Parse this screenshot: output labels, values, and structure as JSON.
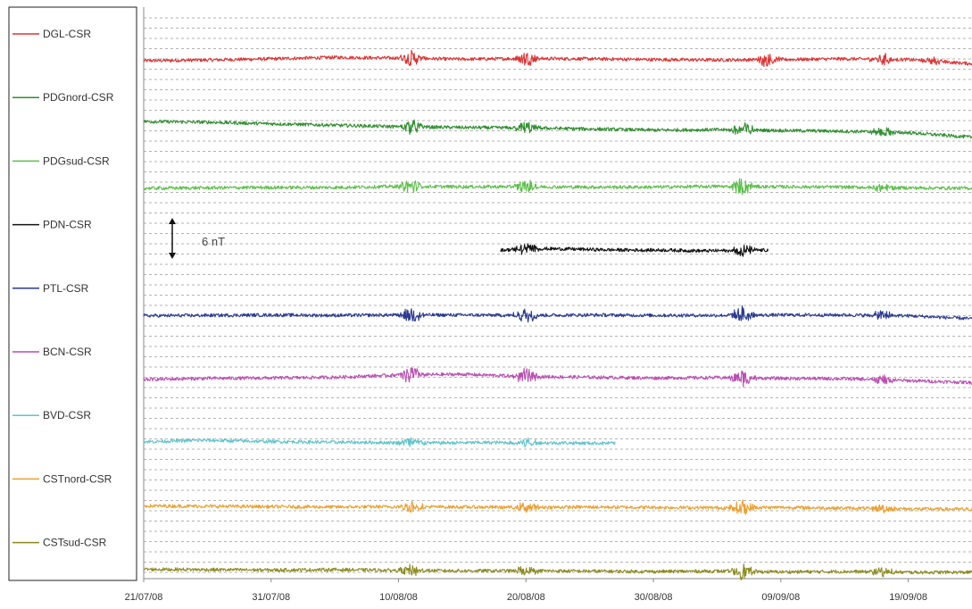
{
  "chart_data": {
    "type": "line",
    "title": "",
    "xlabel": "",
    "ylabel": "",
    "x_ticks": [
      "21/07/08",
      "31/07/08",
      "10/08/08",
      "20/08/08",
      "30/08/08",
      "09/09/08",
      "19/09/08"
    ],
    "x_range_days": [
      0,
      65
    ],
    "grid": {
      "horizontal": "dashed",
      "vertical": "none"
    },
    "legend_placement": "left",
    "scale_bar": {
      "label": "6 nT",
      "value_nT": 6
    },
    "series": [
      {
        "name": "DGL-CSR",
        "color": "#dd3333",
        "start_day": 0,
        "end_day": 65,
        "baseline": [
          0.0,
          0.2,
          0.5,
          0.9,
          0.7,
          0.4,
          0.6,
          0.5,
          0.3,
          0.2,
          0.3,
          0.5,
          0.3,
          -0.8
        ],
        "events": [
          [
            21,
            2.2
          ],
          [
            30,
            2.0
          ],
          [
            49,
            2.0
          ],
          [
            58,
            1.6
          ],
          [
            62,
            -0.8
          ]
        ]
      },
      {
        "name": "PDGnord-CSR",
        "color": "#2f8f2f",
        "start_day": 0,
        "end_day": 65,
        "baseline": [
          0.8,
          0.6,
          0.2,
          -0.2,
          -0.6,
          -0.8,
          -0.9,
          -1.2,
          -1.5,
          -1.4,
          -1.6,
          -1.8,
          -2.2,
          -3.4
        ],
        "events": [
          [
            21,
            2.0
          ],
          [
            30,
            1.8
          ],
          [
            47,
            2.6
          ],
          [
            58,
            1.4
          ]
        ]
      },
      {
        "name": "PDGsud-CSR",
        "color": "#5cbf4a",
        "start_day": 0,
        "end_day": 65,
        "baseline": [
          0.0,
          0.1,
          0.2,
          0.2,
          0.5,
          0.4,
          0.4,
          0.3,
          0.3,
          0.5,
          0.4,
          0.3,
          0.1,
          0.0
        ],
        "events": [
          [
            21,
            2.0
          ],
          [
            30,
            2.0
          ],
          [
            47,
            2.4
          ],
          [
            58,
            1.4
          ]
        ]
      },
      {
        "name": "PDN-CSR",
        "color": "#111111",
        "start_day": 28,
        "end_day": 49,
        "baseline": [
          0.5,
          0.9,
          0.8,
          0.6,
          0.5,
          0.5,
          0.3,
          0.4,
          0.5
        ],
        "events": [
          [
            30,
            1.6
          ],
          [
            47,
            1.6
          ]
        ]
      },
      {
        "name": "PTL-CSR",
        "color": "#2b3a8f",
        "start_day": 0,
        "end_day": 65,
        "baseline": [
          0.0,
          0.1,
          0.2,
          0.1,
          0.2,
          0.2,
          0.1,
          0.2,
          0.1,
          0.1,
          0.2,
          0.2,
          0.0,
          -0.8
        ],
        "events": [
          [
            21,
            2.0
          ],
          [
            30,
            2.0
          ],
          [
            47,
            2.4
          ],
          [
            58,
            1.4
          ]
        ]
      },
      {
        "name": "BCN-CSR",
        "color": "#b94fb0",
        "start_day": 0,
        "end_day": 65,
        "baseline": [
          0.0,
          0.3,
          0.4,
          0.6,
          1.2,
          1.4,
          0.8,
          0.6,
          0.4,
          0.5,
          0.3,
          0.2,
          -0.3,
          -0.8
        ],
        "events": [
          [
            21,
            2.6
          ],
          [
            30,
            2.2
          ],
          [
            47,
            2.6
          ],
          [
            58,
            1.8
          ]
        ]
      },
      {
        "name": "BVD-CSR",
        "color": "#5fc4cc",
        "start_day": 0,
        "end_day": 37,
        "baseline": [
          0.4,
          0.8,
          0.5,
          0.3,
          0.2,
          0.1,
          0.2,
          0.1,
          0.0
        ],
        "events": [
          [
            21,
            1.8
          ],
          [
            30,
            1.4
          ]
        ]
      },
      {
        "name": "CSTnord-CSR",
        "color": "#eba030",
        "start_day": 0,
        "end_day": 65,
        "baseline": [
          0.3,
          0.2,
          0.1,
          0.0,
          0.1,
          0.0,
          -0.1,
          0.0,
          -0.1,
          -0.2,
          -0.1,
          -0.3,
          -0.5,
          -0.6
        ],
        "events": [
          [
            21,
            1.8
          ],
          [
            30,
            1.6
          ],
          [
            47,
            2.2
          ],
          [
            58,
            1.2
          ]
        ]
      },
      {
        "name": "CSTsud-CSR",
        "color": "#8c8a1f",
        "start_day": 0,
        "end_day": 65,
        "baseline": [
          0.4,
          0.3,
          0.2,
          0.3,
          0.1,
          0.0,
          0.0,
          -0.1,
          -0.2,
          -0.1,
          -0.3,
          -0.2,
          -0.4,
          -0.4
        ],
        "events": [
          [
            21,
            1.6
          ],
          [
            30,
            1.4
          ],
          [
            47,
            2.2
          ],
          [
            58,
            1.2
          ]
        ]
      }
    ]
  }
}
